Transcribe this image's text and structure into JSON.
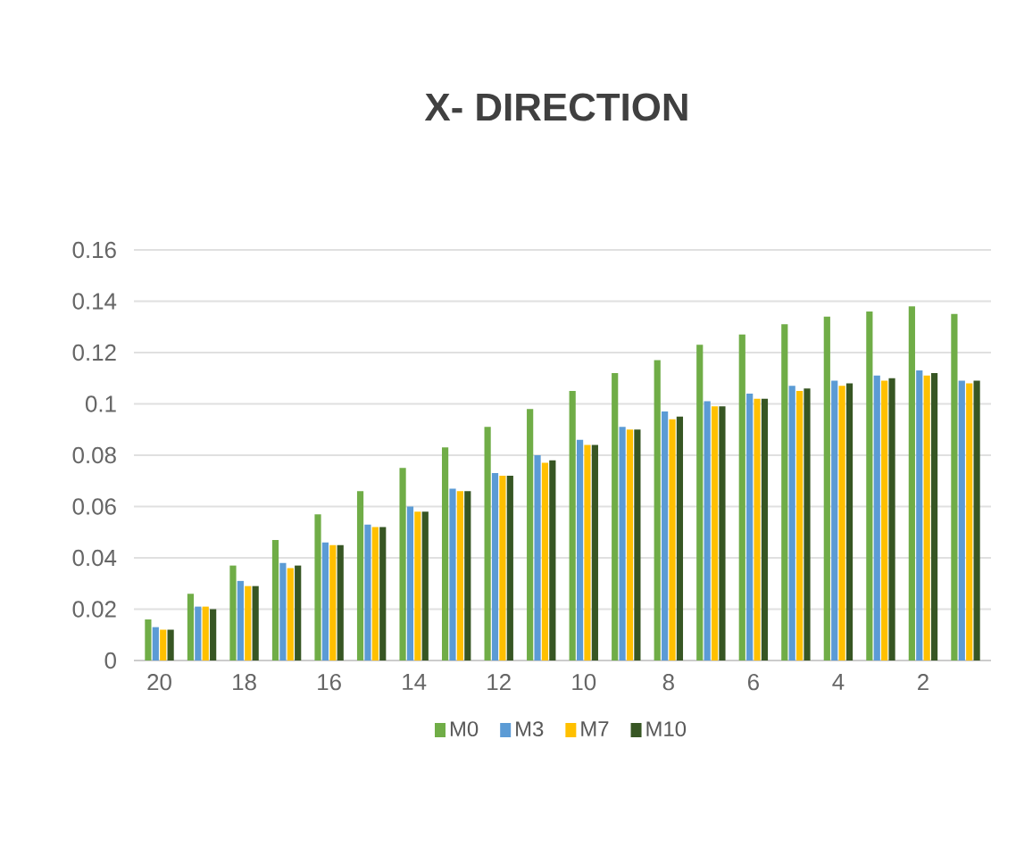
{
  "chart_data": {
    "type": "bar",
    "title": "X- DIRECTION",
    "categories": [
      "20",
      null,
      "18",
      null,
      "16",
      null,
      "14",
      null,
      "12",
      null,
      "10",
      null,
      "8",
      null,
      "6",
      null,
      "4",
      null,
      "2",
      null
    ],
    "series": [
      {
        "name": "M0",
        "color": "#70ad47",
        "values": [
          0.016,
          0.026,
          0.037,
          0.047,
          0.057,
          0.066,
          0.075,
          0.083,
          0.091,
          0.098,
          0.105,
          0.112,
          0.117,
          0.123,
          0.127,
          0.131,
          0.134,
          0.136,
          0.138,
          0.135
        ]
      },
      {
        "name": "M3",
        "color": "#5b9bd5",
        "values": [
          0.013,
          0.021,
          0.031,
          0.038,
          0.046,
          0.053,
          0.06,
          0.067,
          0.073,
          0.08,
          0.086,
          0.091,
          0.097,
          0.101,
          0.104,
          0.107,
          0.109,
          0.111,
          0.113,
          0.109
        ]
      },
      {
        "name": "M7",
        "color": "#ffc000",
        "values": [
          0.012,
          0.021,
          0.029,
          0.036,
          0.045,
          0.052,
          0.058,
          0.066,
          0.072,
          0.077,
          0.084,
          0.09,
          0.094,
          0.099,
          0.102,
          0.105,
          0.107,
          0.109,
          0.111,
          0.108
        ]
      },
      {
        "name": "M10",
        "color": "#375623",
        "values": [
          0.012,
          0.02,
          0.029,
          0.037,
          0.045,
          0.052,
          0.058,
          0.066,
          0.072,
          0.078,
          0.084,
          0.09,
          0.095,
          0.099,
          0.102,
          0.106,
          0.108,
          0.11,
          0.112,
          0.109
        ]
      }
    ],
    "ylim": [
      0,
      0.16
    ],
    "yticks": [
      0,
      0.02,
      0.04,
      0.06,
      0.08,
      0.1,
      0.12,
      0.14,
      0.16
    ],
    "grid": "y",
    "legend": "bottom"
  }
}
